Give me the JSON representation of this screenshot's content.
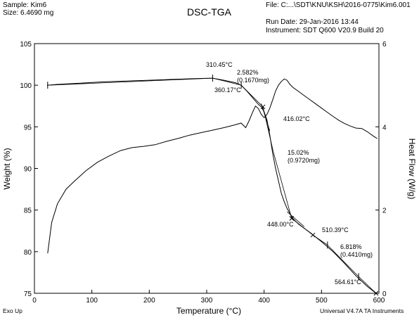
{
  "header": {
    "sample": "Sample: Kim6",
    "size": "Size:  6.4690 mg",
    "title": "DSC-TGA",
    "file": "File: C:...\\SDT\\KNU\\KSH\\2016-0775\\Kim6.001",
    "run_date": "Run Date: 29-Jan-2016 13:44",
    "instrument": "Instrument: SDT Q600 V20.9 Build 20"
  },
  "footer": {
    "left": "Exo Up",
    "right": "Universal V4.7A TA Instruments"
  },
  "chart_data": {
    "type": "line",
    "xlabel": "Temperature (°C)",
    "ylabel": "Weight (%)",
    "y2label": "Heat Flow (W/g)",
    "xlim": [
      0,
      600
    ],
    "ylim": [
      75,
      105
    ],
    "y2lim": [
      0,
      6
    ],
    "xticks": [
      0,
      100,
      200,
      300,
      400,
      500,
      600
    ],
    "yticks": [
      75,
      80,
      85,
      90,
      95,
      100,
      105
    ],
    "y2ticks": [
      0,
      2,
      4,
      6
    ],
    "grid": false,
    "series": [
      {
        "name": "",
        "axis": "left",
        "color": "#000000",
        "x": [
          22,
          40,
          80,
          120,
          160,
          200,
          240,
          280,
          310,
          330,
          350,
          360,
          370,
          380,
          390,
          395,
          400,
          405,
          410,
          415,
          420,
          425,
          430,
          435,
          440,
          445,
          450,
          460,
          480,
          500,
          520,
          540,
          560,
          580,
          595
        ],
        "y": [
          100.0,
          100.1,
          100.25,
          100.4,
          100.5,
          100.6,
          100.7,
          100.8,
          100.85,
          100.6,
          100.3,
          100.0,
          99.3,
          98.5,
          97.7,
          97.4,
          96.8,
          95.8,
          94.0,
          91.8,
          90.0,
          88.5,
          87.0,
          86.0,
          85.2,
          84.6,
          84.0,
          83.3,
          82.3,
          81.2,
          80.0,
          78.6,
          77.1,
          75.8,
          75.0
        ]
      },
      {
        "name": "",
        "axis": "right",
        "color": "#000000",
        "x": [
          23,
          30,
          40,
          55,
          70,
          90,
          110,
          130,
          150,
          170,
          190,
          210,
          230,
          250,
          270,
          290,
          310,
          330,
          350,
          360,
          368,
          374,
          380,
          385,
          390,
          395,
          400,
          405,
          410,
          415,
          420,
          425,
          430,
          435,
          440,
          445,
          450,
          460,
          470,
          480,
          490,
          500,
          510,
          520,
          530,
          540,
          550,
          560,
          570,
          580,
          590,
          597
        ],
        "y": [
          0.96,
          1.7,
          2.15,
          2.5,
          2.7,
          2.95,
          3.15,
          3.3,
          3.43,
          3.5,
          3.53,
          3.57,
          3.65,
          3.72,
          3.8,
          3.86,
          3.92,
          3.98,
          4.05,
          4.09,
          3.98,
          4.15,
          4.35,
          4.5,
          4.44,
          4.3,
          4.22,
          4.3,
          4.45,
          4.65,
          4.86,
          5.0,
          5.09,
          5.15,
          5.12,
          5.02,
          4.95,
          4.85,
          4.75,
          4.65,
          4.55,
          4.45,
          4.35,
          4.25,
          4.16,
          4.08,
          4.02,
          3.97,
          3.96,
          3.88,
          3.78,
          3.72
        ]
      }
    ],
    "annotations": [
      {
        "id": "a1",
        "text": "310.45°C",
        "x": 310.45,
        "y": 100.85
      },
      {
        "id": "a2a",
        "text": "2.582%",
        "x": 360,
        "y": 100.0
      },
      {
        "id": "a2b",
        "text": "(0.1670mg)",
        "x": 360,
        "y": 100.0
      },
      {
        "id": "a3",
        "text": "360.17°C",
        "x": 360.17,
        "y": 100.0
      },
      {
        "id": "a4",
        "text": "416.02°C",
        "x": 416.02,
        "y": 92.0
      },
      {
        "id": "a5a",
        "text": "15.02%",
        "x": 420,
        "y": 88.0
      },
      {
        "id": "a5b",
        "text": "(0.9720mg)",
        "x": 420,
        "y": 88.0
      },
      {
        "id": "a6",
        "text": "448.00°C",
        "x": 448.0,
        "y": 84.0
      },
      {
        "id": "a7",
        "text": "510.39°C",
        "x": 510.39,
        "y": 81.0
      },
      {
        "id": "a8a",
        "text": "6.818%",
        "x": 510,
        "y": 80.5
      },
      {
        "id": "a8b",
        "text": "(0.4410mg)",
        "x": 510,
        "y": 80.5
      },
      {
        "id": "a9",
        "text": "564.61°C",
        "x": 564.61,
        "y": 77.0
      }
    ]
  }
}
